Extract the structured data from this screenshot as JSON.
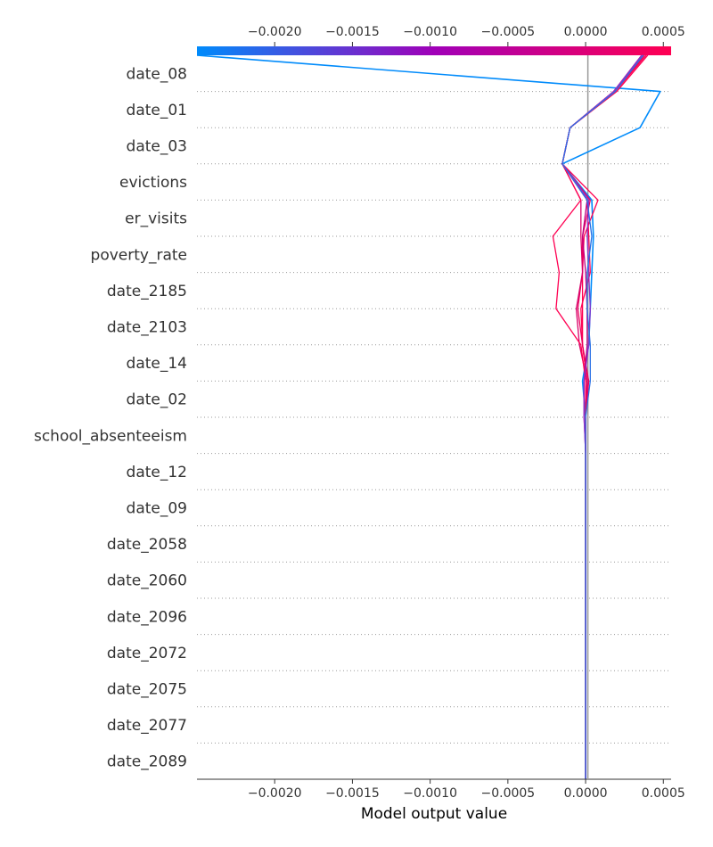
{
  "chart_data": {
    "type": "line",
    "title": "",
    "xlabel": "Model output value",
    "ylabel": "",
    "xlim": [
      -0.0025,
      0.00055
    ],
    "x_ticks": [
      "−0.0020",
      "−0.0015",
      "−0.0010",
      "−0.0005",
      "0.0000",
      "0.0005"
    ],
    "x_tick_values": [
      -0.002,
      -0.0015,
      -0.001,
      -0.0005,
      0.0,
      0.0005
    ],
    "base_value": 0.0,
    "features": [
      "date_08",
      "date_01",
      "date_03",
      "evictions",
      "er_visits",
      "poverty_rate",
      "date_2185",
      "date_2103",
      "date_14",
      "date_02",
      "school_absenteeism",
      "date_12",
      "date_09",
      "date_2058",
      "date_2060",
      "date_2096",
      "date_2072",
      "date_2075",
      "date_2077",
      "date_2089"
    ],
    "colorbar": {
      "low_color": "#008bfb",
      "mid_color": "#a000b8",
      "high_color": "#ff0052"
    },
    "grid": "dotted horizontal",
    "series_x_order": "bottom (date_2089) to top (date_08) boundary values",
    "series": [
      {
        "color": "#008bfb",
        "values": [
          0,
          0,
          0,
          0,
          0,
          0,
          0,
          0,
          0,
          0,
          0,
          -2e-05,
          2e-05,
          3e-05,
          4e-05,
          5e-05,
          4e-05,
          -0.00015,
          0.00035,
          0.00048,
          -0.0025
        ]
      },
      {
        "color": "#ff0052",
        "values": [
          0,
          0,
          0,
          0,
          0,
          0,
          0,
          0,
          0,
          0,
          0,
          1e-05,
          -2e-05,
          -3e-05,
          3e-05,
          2e-05,
          1e-05,
          -0.00015,
          -0.0001,
          0.00018,
          0.00036
        ]
      },
      {
        "color": "#ff0052",
        "values": [
          0,
          0,
          0,
          0,
          0,
          0,
          0,
          0,
          0,
          0,
          0,
          1e-05,
          -2e-05,
          -2e-05,
          -2e-05,
          -1e-05,
          8e-05,
          -0.00015,
          -0.0001,
          0.0002,
          0.0004
        ]
      },
      {
        "color": "#e8005e",
        "values": [
          0,
          0,
          0,
          0,
          0,
          0,
          0,
          0,
          0,
          0,
          0,
          2e-05,
          -2e-05,
          -5e-05,
          -2e-05,
          -2e-05,
          3e-05,
          -0.00015,
          -0.0001,
          0.00019,
          0.00038
        ]
      },
      {
        "color": "#d8006a",
        "values": [
          0,
          0,
          0,
          0,
          0,
          0,
          0,
          0,
          0,
          0,
          0,
          1e-05,
          -4e-05,
          -6e-05,
          -2e-05,
          -3e-05,
          -3e-05,
          -0.00015,
          -0.0001,
          0.00018,
          0.00037
        ]
      },
      {
        "color": "#ff0052",
        "values": [
          0,
          0,
          0,
          0,
          0,
          0,
          0,
          0,
          0,
          0,
          0,
          0,
          -3e-05,
          -0.00019,
          -0.00017,
          -0.00021,
          -3e-05,
          -0.00015,
          -0.0001,
          0.00019,
          0.00039
        ]
      },
      {
        "color": "#c00080",
        "values": [
          0,
          0,
          0,
          0,
          0,
          0,
          0,
          0,
          0,
          0,
          -1e-05,
          -1e-05,
          1e-05,
          1e-05,
          0,
          -2e-05,
          1e-05,
          -0.00015,
          -0.0001,
          0.00018,
          0.00037
        ]
      },
      {
        "color": "#9030c8",
        "values": [
          0,
          0,
          0,
          0,
          0,
          0,
          0,
          0,
          0,
          0,
          -1e-05,
          -1e-05,
          2e-05,
          3e-05,
          2e-05,
          1e-05,
          2e-05,
          -0.00015,
          -0.0001,
          0.00018,
          0.00036
        ]
      },
      {
        "color": "#2a72e6",
        "values": [
          0,
          0,
          0,
          0,
          0,
          0,
          0,
          0,
          0,
          0,
          0,
          3e-05,
          3e-05,
          1e-05,
          1e-05,
          4e-05,
          1e-05,
          -0.00015,
          -0.0001,
          0.00019,
          0.00037
        ]
      }
    ]
  }
}
